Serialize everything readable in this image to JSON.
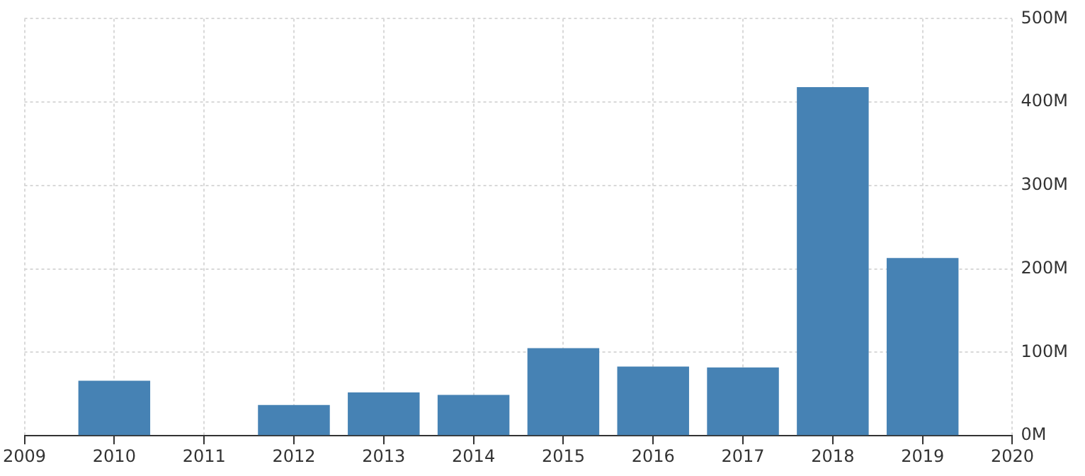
{
  "chart_data": {
    "type": "bar",
    "x": [
      2010,
      2011,
      2012,
      2013,
      2014,
      2015,
      2016,
      2017,
      2018,
      2019
    ],
    "values": [
      66,
      null,
      37,
      52,
      49,
      105,
      83,
      82,
      418,
      213
    ],
    "color": "#4682b4",
    "xlim": [
      2009,
      2020
    ],
    "xticks": [
      2009,
      2010,
      2011,
      2012,
      2013,
      2014,
      2015,
      2016,
      2017,
      2018,
      2019,
      2020
    ],
    "ylim": [
      0,
      500
    ],
    "yticks": [
      {
        "value": 0,
        "label": "0M"
      },
      {
        "value": 100,
        "label": "100M"
      },
      {
        "value": 200,
        "label": "200M"
      },
      {
        "value": 300,
        "label": "300M"
      },
      {
        "value": 400,
        "label": "400M"
      },
      {
        "value": 500,
        "label": "500M"
      }
    ],
    "grid": true
  }
}
